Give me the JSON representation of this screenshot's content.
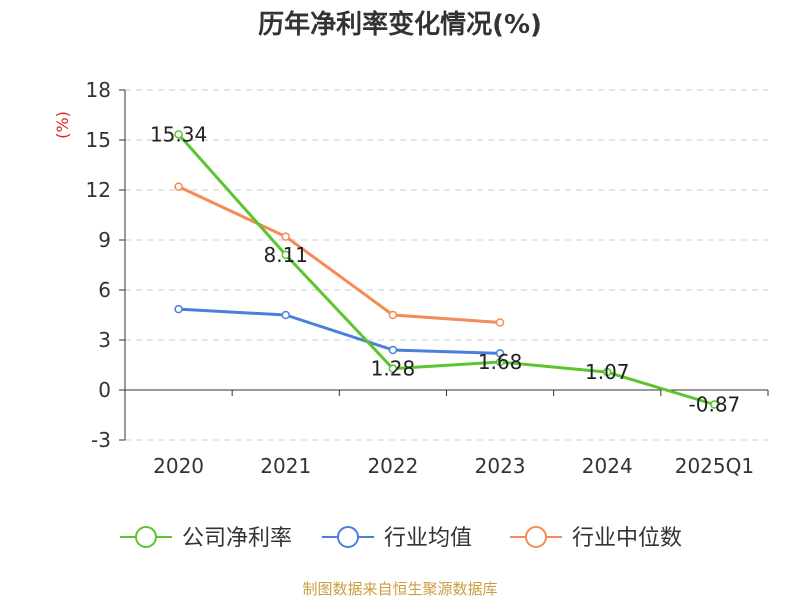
{
  "chart_data": {
    "type": "line",
    "title": "历年净利率变化情况(%)",
    "ylabel": "(%)",
    "categories": [
      "2020",
      "2021",
      "2022",
      "2023",
      "2024",
      "2025Q1"
    ],
    "ylim": [
      -3,
      18
    ],
    "yticks": [
      -3,
      0,
      3,
      6,
      9,
      12,
      15,
      18
    ],
    "grid": true,
    "legend_position": "bottom",
    "series": [
      {
        "name": "公司净利率",
        "color": "#5cc42f",
        "values": [
          15.34,
          8.11,
          1.28,
          1.68,
          1.07,
          -0.87
        ],
        "labels": [
          "15.34",
          "8.11",
          "1.28",
          "1.68",
          "1.07",
          "-0.87"
        ]
      },
      {
        "name": "行业均值",
        "color": "#4a7fdc",
        "values": [
          4.85,
          4.5,
          2.4,
          2.2,
          null,
          null
        ]
      },
      {
        "name": "行业中位数",
        "color": "#f58b55",
        "values": [
          12.2,
          9.2,
          4.5,
          4.05,
          null,
          null
        ]
      }
    ],
    "source": "制图数据来自恒生聚源数据库"
  }
}
